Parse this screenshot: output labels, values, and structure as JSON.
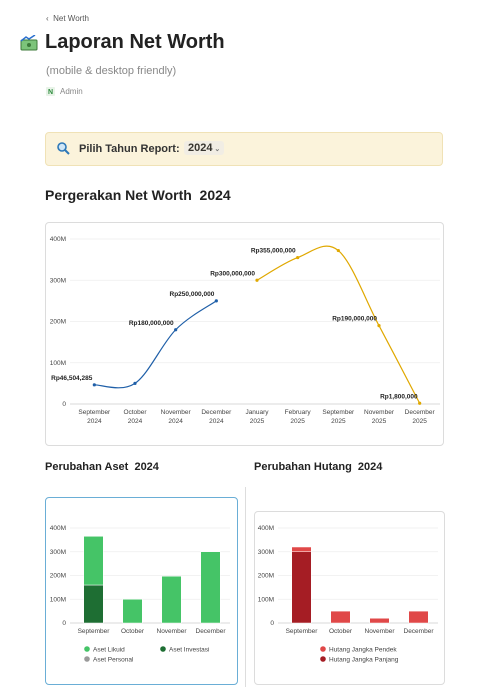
{
  "page": {
    "breadcrumb": "Net Worth",
    "title": "Laporan Net Worth",
    "subtitle": "(mobile & desktop friendly)",
    "author": "Admin",
    "callout_label": "Pilih Tahun Report:",
    "year": "2024"
  },
  "chart_data": [
    {
      "type": "line",
      "title": "Pergerakan Net Worth  2024",
      "categories": [
        "September 2024",
        "October 2024",
        "November 2024",
        "December 2024",
        "January 2025",
        "February 2025",
        "September 2025",
        "November 2025",
        "December 2025"
      ],
      "series": [
        {
          "color": "#1f5fa8",
          "values": [
            46504285,
            50000000,
            180000000,
            250000000,
            null,
            null,
            null,
            null,
            null
          ],
          "value_labels": [
            "Rp46,504,285",
            null,
            "Rp180,000,000",
            "Rp250,000,000",
            null,
            null,
            null,
            null,
            null
          ]
        },
        {
          "color": "#e0a800",
          "values": [
            null,
            null,
            null,
            null,
            300000000,
            355000000,
            372000000,
            190000000,
            1800000
          ],
          "value_labels": [
            null,
            null,
            null,
            null,
            "Rp300,000,000",
            "Rp355,000,000",
            null,
            "Rp190,000,000",
            "Rp1,800,000"
          ]
        }
      ],
      "ylim": [
        0,
        420000000
      ],
      "yticks": [
        0,
        {
          "value": 100000000,
          "label": "100M"
        },
        {
          "value": 200000000,
          "label": "200M"
        },
        {
          "value": 300000000,
          "label": "300M"
        },
        {
          "value": 400000000,
          "label": "400M"
        }
      ],
      "grid": true
    },
    {
      "type": "stacked_bar",
      "title": "Perubahan Aset  2024",
      "categories": [
        "September",
        "October",
        "November",
        "December"
      ],
      "series": [
        {
          "name": "Aset Likuid",
          "color": "#45c467",
          "values": [
            205000000,
            100000000,
            197000000,
            300000000
          ]
        },
        {
          "name": "Aset Investasi",
          "color": "#1e6e33",
          "values": [
            160000000,
            0,
            0,
            0
          ]
        },
        {
          "name": "Aset Personal",
          "color": "#9a9a9a",
          "values": [
            0,
            0,
            0,
            0
          ]
        }
      ],
      "ylim": [
        0,
        420000000
      ],
      "yticks": [
        0,
        {
          "value": 100000000,
          "label": "100M"
        },
        {
          "value": 200000000,
          "label": "200M"
        },
        {
          "value": 300000000,
          "label": "300M"
        },
        {
          "value": 400000000,
          "label": "400M"
        }
      ],
      "grid": true
    },
    {
      "type": "stacked_bar",
      "title": "Perubahan Hutang  2024",
      "categories": [
        "September",
        "October",
        "November",
        "December"
      ],
      "series": [
        {
          "name": "Hutang Jangka Pendek",
          "color": "#e04848",
          "values": [
            20000000,
            50000000,
            20000000,
            50000000
          ]
        },
        {
          "name": "Hutang Jangka Panjang",
          "color": "#a51d24",
          "values": [
            300000000,
            0,
            0,
            0
          ]
        }
      ],
      "ylim": [
        0,
        420000000
      ],
      "yticks": [
        0,
        {
          "value": 100000000,
          "label": "100M"
        },
        {
          "value": 200000000,
          "label": "200M"
        },
        {
          "value": 300000000,
          "label": "300M"
        },
        {
          "value": 400000000,
          "label": "400M"
        }
      ],
      "grid": true
    }
  ]
}
